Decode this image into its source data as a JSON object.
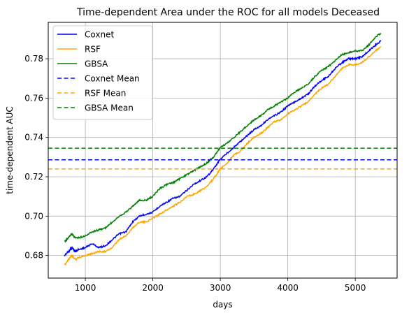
{
  "chart_data": {
    "type": "line",
    "title": "Time-dependent Area under the ROC for all models Deceased",
    "xlabel": "days",
    "ylabel": "time-dependent AUC",
    "xlim": [
      450,
      5620
    ],
    "ylim": [
      0.6685,
      0.7985
    ],
    "xticks": [
      1000,
      2000,
      3000,
      4000,
      5000
    ],
    "yticks": [
      0.68,
      0.7,
      0.72,
      0.74,
      0.76,
      0.78
    ],
    "grid": true,
    "legend_position": "top-left",
    "series": [
      {
        "name": "Coxnet",
        "color": "#0000ff",
        "style": "solid",
        "x": [
          690,
          750,
          800,
          850,
          900,
          1000,
          1100,
          1200,
          1300,
          1400,
          1500,
          1600,
          1700,
          1800,
          1900,
          2000,
          2100,
          2200,
          2300,
          2400,
          2500,
          2600,
          2700,
          2800,
          2900,
          3000,
          3100,
          3200,
          3300,
          3400,
          3500,
          3600,
          3700,
          3800,
          3900,
          4000,
          4100,
          4200,
          4300,
          4400,
          4500,
          4600,
          4700,
          4800,
          4900,
          5000,
          5100,
          5200,
          5300,
          5380
        ],
        "y": [
          0.68,
          0.682,
          0.684,
          0.682,
          0.683,
          0.684,
          0.686,
          0.684,
          0.685,
          0.688,
          0.691,
          0.692,
          0.697,
          0.7,
          0.701,
          0.702,
          0.705,
          0.707,
          0.709,
          0.71,
          0.713,
          0.716,
          0.718,
          0.72,
          0.724,
          0.729,
          0.732,
          0.735,
          0.738,
          0.741,
          0.744,
          0.746,
          0.749,
          0.751,
          0.753,
          0.756,
          0.758,
          0.76,
          0.762,
          0.766,
          0.769,
          0.771,
          0.775,
          0.778,
          0.78,
          0.78,
          0.781,
          0.784,
          0.787,
          0.789
        ]
      },
      {
        "name": "RSF",
        "color": "#ffa500",
        "style": "solid",
        "x": [
          690,
          750,
          800,
          850,
          900,
          1000,
          1100,
          1200,
          1300,
          1400,
          1500,
          1600,
          1700,
          1800,
          1900,
          2000,
          2100,
          2200,
          2300,
          2400,
          2500,
          2600,
          2700,
          2800,
          2900,
          3000,
          3100,
          3200,
          3300,
          3400,
          3500,
          3600,
          3700,
          3800,
          3900,
          4000,
          4100,
          4200,
          4300,
          4400,
          4500,
          4600,
          4700,
          4800,
          4900,
          5000,
          5100,
          5200,
          5300,
          5380
        ],
        "y": [
          0.675,
          0.678,
          0.68,
          0.678,
          0.679,
          0.68,
          0.681,
          0.682,
          0.682,
          0.684,
          0.688,
          0.69,
          0.694,
          0.697,
          0.697,
          0.699,
          0.701,
          0.703,
          0.705,
          0.707,
          0.71,
          0.711,
          0.713,
          0.715,
          0.719,
          0.724,
          0.727,
          0.731,
          0.733,
          0.737,
          0.74,
          0.742,
          0.745,
          0.748,
          0.749,
          0.752,
          0.754,
          0.756,
          0.758,
          0.762,
          0.765,
          0.767,
          0.771,
          0.775,
          0.777,
          0.777,
          0.778,
          0.781,
          0.784,
          0.786
        ]
      },
      {
        "name": "GBSA",
        "color": "#008000",
        "style": "solid",
        "x": [
          690,
          750,
          800,
          850,
          900,
          1000,
          1100,
          1200,
          1300,
          1400,
          1500,
          1600,
          1700,
          1800,
          1900,
          2000,
          2100,
          2200,
          2300,
          2400,
          2500,
          2600,
          2700,
          2800,
          2900,
          3000,
          3100,
          3200,
          3300,
          3400,
          3500,
          3600,
          3700,
          3800,
          3900,
          4000,
          4100,
          4200,
          4300,
          4400,
          4500,
          4600,
          4700,
          4800,
          4900,
          5000,
          5100,
          5200,
          5300,
          5380
        ],
        "y": [
          0.687,
          0.689,
          0.691,
          0.689,
          0.689,
          0.69,
          0.692,
          0.693,
          0.694,
          0.697,
          0.7,
          0.702,
          0.705,
          0.708,
          0.708,
          0.71,
          0.714,
          0.716,
          0.717,
          0.719,
          0.721,
          0.723,
          0.725,
          0.727,
          0.73,
          0.735,
          0.737,
          0.74,
          0.743,
          0.746,
          0.749,
          0.751,
          0.754,
          0.756,
          0.758,
          0.76,
          0.763,
          0.765,
          0.767,
          0.771,
          0.774,
          0.776,
          0.779,
          0.782,
          0.783,
          0.784,
          0.784,
          0.787,
          0.791,
          0.793
        ]
      },
      {
        "name": "Coxnet Mean",
        "color": "#0000ff",
        "style": "dashed",
        "x": [
          450,
          5620
        ],
        "y": [
          0.7286,
          0.7286
        ]
      },
      {
        "name": "RSF Mean",
        "color": "#ffa500",
        "style": "dashed",
        "x": [
          450,
          5620
        ],
        "y": [
          0.724,
          0.724
        ]
      },
      {
        "name": "GBSA Mean",
        "color": "#008000",
        "style": "dashed",
        "x": [
          450,
          5620
        ],
        "y": [
          0.7345,
          0.7345
        ]
      }
    ]
  }
}
